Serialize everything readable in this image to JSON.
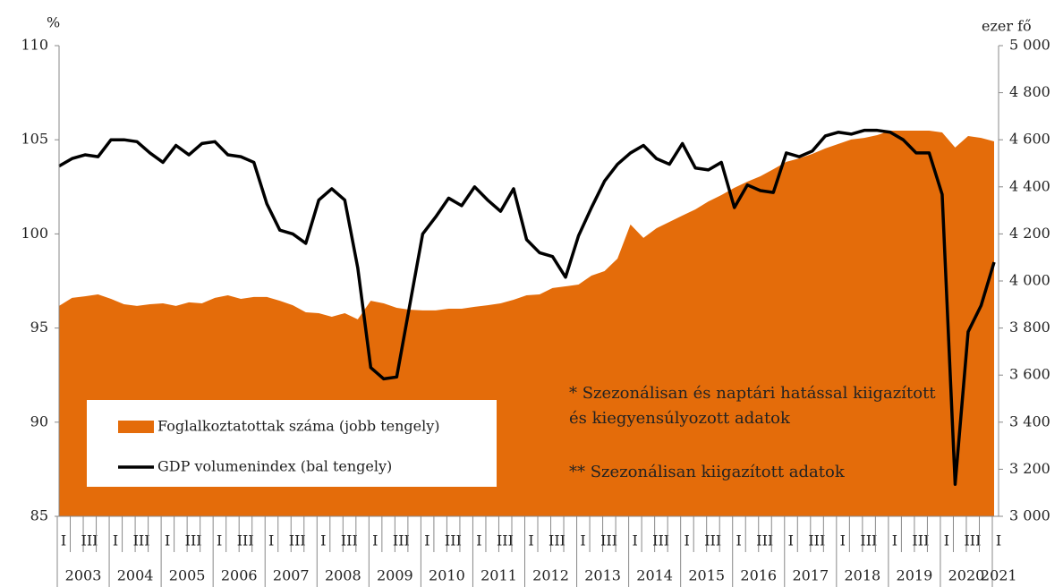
{
  "chart_data": {
    "type": "line",
    "ylabel": "%",
    "y2label": "ezer fő",
    "categories": [
      "I",
      null,
      "III",
      null,
      "I",
      null,
      "III",
      null,
      "I",
      null,
      "III",
      null,
      "I",
      null,
      "III",
      null,
      "I",
      null,
      "III",
      null,
      "I",
      null,
      "III",
      null,
      "I",
      null,
      "III",
      null,
      "I",
      null,
      "III",
      null,
      "I",
      null,
      "III",
      null,
      "I",
      null,
      "III",
      null,
      "I",
      null,
      "III",
      null,
      "I",
      null,
      "III",
      null,
      "I",
      null,
      "III",
      null,
      "I",
      null,
      "III",
      null,
      "I",
      null,
      "III",
      null,
      "I",
      null,
      "III",
      null,
      "I",
      null,
      "III",
      null,
      "I",
      null,
      "III",
      null,
      "I"
    ],
    "years": [
      "2003",
      "2004",
      "2005",
      "2006",
      "2007",
      "2008",
      "2009",
      "2010",
      "2011",
      "2012",
      "2013",
      "2014",
      "2015",
      "2016",
      "2017",
      "2018",
      "2019",
      "2020",
      "2021"
    ],
    "series": [
      {
        "name": "Foglalkoztatottak száma  (jobb tengely)",
        "type": "area",
        "axis": "y2",
        "color": "#e46c0a",
        "values": [
          3894,
          3928,
          3935,
          3943,
          3924,
          3901,
          3894,
          3901,
          3905,
          3894,
          3909,
          3905,
          3928,
          3939,
          3924,
          3932,
          3932,
          3916,
          3897,
          3867,
          3863,
          3848,
          3863,
          3837,
          3916,
          3905,
          3886,
          3878,
          3875,
          3875,
          3882,
          3882,
          3890,
          3897,
          3905,
          3920,
          3939,
          3943,
          3970,
          3977,
          3985,
          4023,
          4042,
          4095,
          4240,
          4183,
          4224,
          4251,
          4278,
          4304,
          4338,
          4365,
          4396,
          4422,
          4445,
          4475,
          4506,
          4521,
          4540,
          4563,
          4582,
          4601,
          4608,
          4620,
          4639,
          4639,
          4639,
          4639,
          4631,
          4567,
          4616,
          4608,
          4593
        ]
      },
      {
        "name": "GDP volumenindex (bal tengely)",
        "type": "line",
        "axis": "y",
        "color": "#000000",
        "values": [
          103.6,
          104.0,
          104.2,
          104.1,
          105.0,
          105.0,
          104.9,
          104.3,
          103.8,
          104.7,
          104.2,
          104.8,
          104.9,
          104.2,
          104.1,
          103.8,
          101.6,
          100.2,
          100.0,
          99.5,
          101.8,
          102.4,
          101.8,
          98.2,
          92.9,
          92.3,
          92.4,
          96.2,
          100.0,
          100.9,
          101.9,
          101.5,
          102.5,
          101.8,
          101.2,
          102.4,
          99.7,
          99.0,
          98.8,
          97.7,
          99.9,
          101.4,
          102.8,
          103.7,
          104.3,
          104.7,
          104.0,
          103.7,
          104.8,
          103.5,
          103.4,
          103.8,
          101.4,
          102.6,
          102.3,
          102.2,
          104.3,
          104.1,
          104.4,
          105.2,
          105.4,
          105.3,
          105.5,
          105.5,
          105.4,
          105.0,
          104.3,
          104.3,
          102.1,
          86.7,
          94.8,
          96.2,
          98.5
        ]
      }
    ],
    "ylim": [
      85,
      110
    ],
    "yticks": [
      85,
      90,
      95,
      100,
      105,
      110
    ],
    "y2lim": [
      3000,
      5000
    ],
    "y2ticks": [
      {
        "value": 3000,
        "label": "3 000"
      },
      {
        "value": 3200,
        "label": "3 200"
      },
      {
        "value": 3400,
        "label": "3 400"
      },
      {
        "value": 3600,
        "label": "3 600"
      },
      {
        "value": 3800,
        "label": "3 800"
      },
      {
        "value": 4000,
        "label": "4 000"
      },
      {
        "value": 4200,
        "label": "4 200"
      },
      {
        "value": 4400,
        "label": "4 400"
      },
      {
        "value": 4600,
        "label": "4 600"
      },
      {
        "value": 4800,
        "label": "4 800"
      },
      {
        "value": 5000,
        "label": "5 000"
      }
    ],
    "annotations": [
      [
        "* Szezonálisan és naptári hatással kiigazított",
        "és kiegyensúlyozott adatok"
      ],
      [
        "** Szezonálisan kiigazított adatok"
      ]
    ]
  }
}
